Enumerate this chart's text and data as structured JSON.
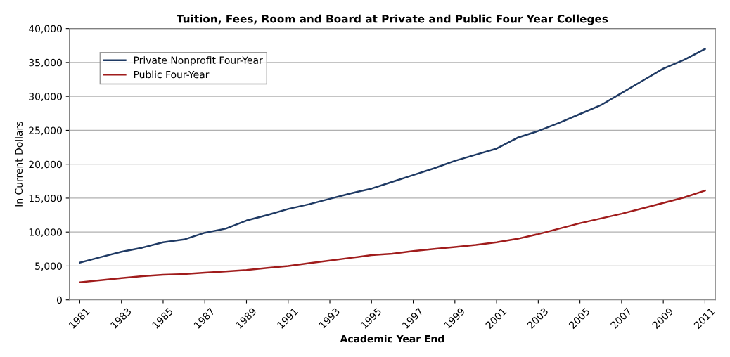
{
  "chart_data": {
    "type": "line",
    "title": "Tuition, Fees, Room and Board at Private and Public Four Year Colleges",
    "xlabel": "Academic Year End",
    "ylabel": "In Current Dollars",
    "x": [
      1981,
      1982,
      1983,
      1984,
      1985,
      1986,
      1987,
      1988,
      1989,
      1990,
      1991,
      1992,
      1993,
      1994,
      1995,
      1996,
      1997,
      1998,
      1999,
      2000,
      2001,
      2002,
      2003,
      2004,
      2005,
      2006,
      2007,
      2008,
      2009,
      2010,
      2011
    ],
    "series": [
      {
        "name": "Private Nonprofit Four-Year",
        "color": "#1f3a64",
        "values": [
          5500,
          6300,
          7100,
          7700,
          8500,
          8900,
          9900,
          10500,
          11700,
          12500,
          13400,
          14100,
          14900,
          15700,
          16400,
          17400,
          18400,
          19400,
          20500,
          21400,
          22300,
          23900,
          24900,
          26100,
          27400,
          28700,
          30500,
          32300,
          34100,
          35400,
          37000
        ]
      },
      {
        "name": "Public Four-Year",
        "color": "#a01c1c",
        "values": [
          2600,
          2900,
          3200,
          3500,
          3700,
          3800,
          4000,
          4200,
          4400,
          4700,
          5000,
          5400,
          5800,
          6200,
          6600,
          6800,
          7200,
          7500,
          7800,
          8100,
          8500,
          9000,
          9700,
          10500,
          11300,
          12000,
          12700,
          13500,
          14300,
          15100,
          16100
        ]
      }
    ],
    "xlim": [
      1980.5,
      2011.5
    ],
    "xticks": [
      1981,
      1983,
      1985,
      1987,
      1989,
      1991,
      1993,
      1995,
      1997,
      1999,
      2001,
      2003,
      2005,
      2007,
      2009,
      2011
    ],
    "ylim": [
      0,
      40000
    ],
    "yticks": [
      {
        "value": 0,
        "label": "0"
      },
      {
        "value": 5000,
        "label": "5,000"
      },
      {
        "value": 10000,
        "label": "10,000"
      },
      {
        "value": 15000,
        "label": "15,000"
      },
      {
        "value": 20000,
        "label": "20,000"
      },
      {
        "value": 25000,
        "label": "25,000"
      },
      {
        "value": 30000,
        "label": "30,000"
      },
      {
        "value": 35000,
        "label": "35,000"
      },
      {
        "value": 40000,
        "label": "40,000"
      }
    ],
    "grid": "y",
    "legend": "top left"
  }
}
